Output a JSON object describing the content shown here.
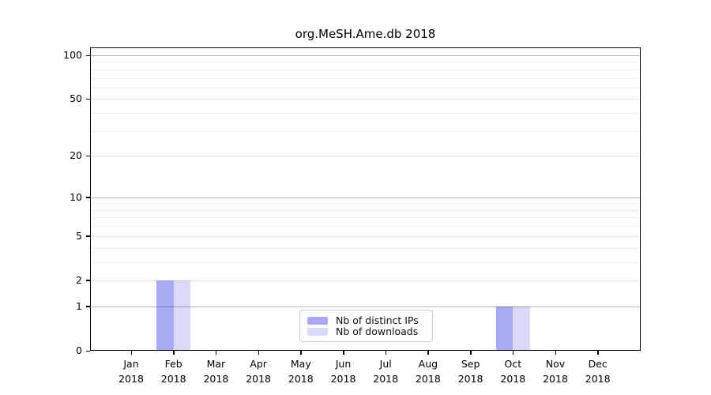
{
  "chart_data": {
    "type": "bar",
    "title": "org.MeSH.Ame.db 2018",
    "xlabel": "",
    "ylabel": "",
    "categories": [
      "Jan 2018",
      "Feb 2018",
      "Mar 2018",
      "Apr 2018",
      "May 2018",
      "Jun 2018",
      "Jul 2018",
      "Aug 2018",
      "Sep 2018",
      "Oct 2018",
      "Nov 2018",
      "Dec 2018"
    ],
    "series": [
      {
        "name": "Nb of distinct IPs",
        "color": "#a9a9f4",
        "values": [
          0,
          2,
          0,
          0,
          0,
          0,
          0,
          0,
          0,
          1,
          0,
          0
        ]
      },
      {
        "name": "Nb of downloads",
        "color": "#dadaf8",
        "values": [
          0,
          2,
          0,
          0,
          0,
          0,
          0,
          0,
          0,
          1,
          0,
          0
        ]
      }
    ],
    "yscale": "log1p",
    "ylim": [
      0,
      115
    ],
    "yticks_labeled": [
      0,
      1,
      2,
      5,
      10,
      20,
      50,
      100
    ],
    "yticks_decade_major": [
      1,
      10,
      100
    ],
    "yticks_minor": [
      3,
      4,
      6,
      7,
      8,
      9,
      30,
      40,
      60,
      70,
      80,
      90
    ],
    "grid": true,
    "legend_position": "lower center"
  },
  "colors": {
    "grid_decade": "rgba(0,0,0,0.29)",
    "grid_labeled": "rgba(0,0,0,0.115)",
    "grid_minor": "rgba(0,0,0,0.06)",
    "axis": "#000000",
    "legend_border": "#cccccc"
  }
}
